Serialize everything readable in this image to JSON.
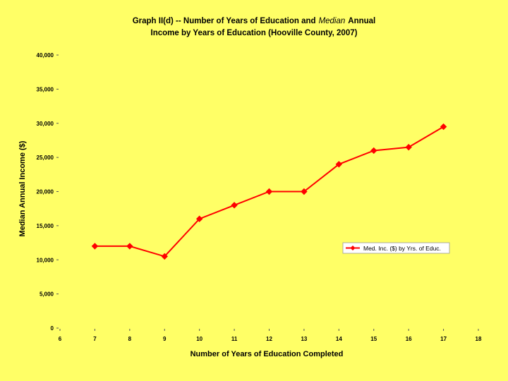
{
  "chart_data": {
    "type": "line",
    "title_part1": "Graph II(d) -- Number of Years of Education and",
    "title_emphasis": "Median",
    "title_part2": "Annual",
    "title_line2": "Income by Years of Education (Hooville County, 2007)",
    "xlabel": "Number of Years of Education Completed",
    "ylabel": "Median Annual Income ($)",
    "xlim": [
      6,
      18
    ],
    "ylim": [
      0,
      40000
    ],
    "x_ticks": [
      6,
      7,
      8,
      9,
      10,
      11,
      12,
      13,
      14,
      15,
      16,
      17,
      18
    ],
    "y_ticks": [
      0,
      5000,
      10000,
      15000,
      20000,
      25000,
      30000,
      35000,
      40000
    ],
    "y_tick_labels": [
      "0",
      "5,000",
      "10,000",
      "15,000",
      "20,000",
      "25,000",
      "30,000",
      "35,000",
      "40,000"
    ],
    "series": [
      {
        "name": "Med. Inc. ($) by Yrs. of Educ.",
        "color": "#ff0000",
        "x": [
          7,
          8,
          9,
          10,
          11,
          12,
          13,
          14,
          15,
          16,
          17
        ],
        "values": [
          12000,
          12000,
          10500,
          16000,
          18000,
          20000,
          20000,
          24000,
          26000,
          26500,
          29500
        ]
      }
    ],
    "legend_position": "right",
    "grid": false
  }
}
